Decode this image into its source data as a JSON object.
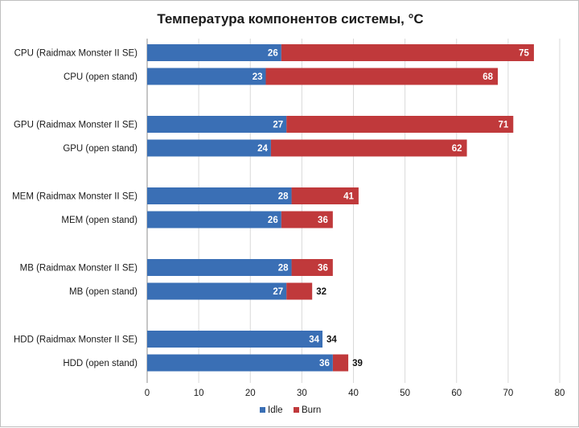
{
  "chart_data": {
    "type": "bar",
    "orientation": "horizontal",
    "stacked": "overlay",
    "title": "Температура компонентов системы, °C",
    "categories": [
      "CPU (Raidmax Monster II SE)",
      "CPU (open stand)",
      "GPU (Raidmax Monster II SE)",
      "GPU (open stand)",
      "MEM (Raidmax Monster II SE)",
      "MEM (open stand)",
      "MB (Raidmax Monster II SE)",
      "MB (open stand)",
      "HDD (Raidmax Monster II SE)",
      "HDD (open stand)"
    ],
    "series": [
      {
        "name": "Idle",
        "color": "#3a6fb5",
        "values": [
          26,
          23,
          27,
          24,
          28,
          26,
          28,
          27,
          34,
          36
        ]
      },
      {
        "name": "Burn",
        "color": "#c0393b",
        "values": [
          75,
          68,
          71,
          62,
          41,
          36,
          36,
          32,
          34,
          39
        ]
      }
    ],
    "xlim": [
      0,
      80
    ],
    "xticks": [
      0,
      10,
      20,
      30,
      40,
      50,
      60,
      70,
      80
    ],
    "grid": true,
    "legend": "bottom",
    "xlabel": "",
    "ylabel": ""
  }
}
